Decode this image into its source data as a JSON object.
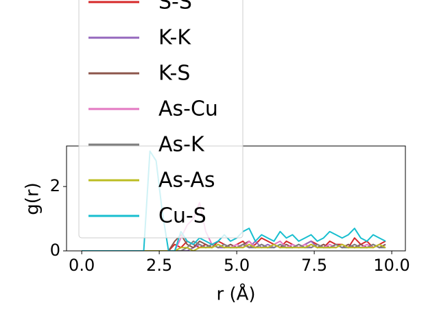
{
  "chart_data": {
    "type": "line",
    "xlabel": "r (Å)",
    "ylabel": "g(r)",
    "x": [
      0,
      0.2,
      0.4,
      0.6,
      0.8,
      1.0,
      1.2,
      1.4,
      1.6,
      1.8,
      2.0,
      2.2,
      2.4,
      2.6,
      2.8,
      3.0,
      3.2,
      3.4,
      3.6,
      3.8,
      4.0,
      4.2,
      4.4,
      4.6,
      4.8,
      5.0,
      5.2,
      5.4,
      5.6,
      5.8,
      6.0,
      6.2,
      6.4,
      6.6,
      6.8,
      7.0,
      7.2,
      7.4,
      7.6,
      7.8,
      8.0,
      8.2,
      8.4,
      8.6,
      8.8,
      9.0,
      9.2,
      9.4,
      9.6,
      9.8
    ],
    "series": [
      {
        "name": "S-S",
        "color": "#d62728",
        "values": [
          0,
          0,
          0,
          0,
          0,
          0,
          0,
          0,
          0,
          0,
          0,
          0,
          0,
          0,
          0,
          0.2,
          0.1,
          0.3,
          0.2,
          0.1,
          0.2,
          0.1,
          0.3,
          0.2,
          0.1,
          0.2,
          0.3,
          0.1,
          0.2,
          0.4,
          0.3,
          0.2,
          0.1,
          0.3,
          0.2,
          0.1,
          0.2,
          0.3,
          0.2,
          0.1,
          0.3,
          0.2,
          0.2,
          0.1,
          0.4,
          0.2,
          0.3,
          0.1,
          0.2,
          0.3
        ]
      },
      {
        "name": "K-K",
        "color": "#9467bd",
        "values": [
          0,
          0,
          0,
          0,
          0,
          0,
          0,
          0,
          0,
          0,
          0,
          0,
          0,
          0,
          0,
          0,
          0,
          0,
          0.1,
          0.2,
          0.1,
          0.2,
          0.1,
          0.1,
          0.2,
          0.1,
          0.2,
          0.1,
          0.3,
          0.1,
          0.2,
          0.1,
          0.2,
          0.1,
          0.2,
          0.1,
          0.2,
          0.3,
          0.1,
          0.2,
          0.1,
          0.2,
          0.1,
          0.2,
          0.1,
          0.2,
          0.1,
          0.2,
          0.1,
          0.2
        ]
      },
      {
        "name": "K-S",
        "color": "#8c564b",
        "values": [
          0,
          0,
          0,
          0,
          0,
          0,
          0,
          0,
          0,
          0,
          0,
          0,
          0,
          0,
          0,
          0.3,
          0.5,
          0.2,
          0.1,
          0.3,
          0.2,
          0.1,
          0.2,
          0.1,
          0.2,
          0.1,
          0.2,
          0.3,
          0.1,
          0.2,
          0.1,
          0.2,
          0.1,
          0.2,
          0.1,
          0.2,
          0.1,
          0.2,
          0.1,
          0.2,
          0.1,
          0.2,
          0.1,
          0.2,
          0.1,
          0.2,
          0.1,
          0.2,
          0.1,
          0.2
        ]
      },
      {
        "name": "As-Cu",
        "color": "#e377c2",
        "values": [
          0,
          0,
          0,
          0,
          0,
          0,
          0,
          0,
          0,
          0,
          0,
          0,
          0,
          0,
          0,
          0,
          0.4,
          0.8,
          1.0,
          1.5,
          0.6,
          0.2,
          0.1,
          0.2,
          0.1,
          0.2,
          0.1,
          0.3,
          0.1,
          0.2,
          0.1,
          0.2,
          0.3,
          0.1,
          0.2,
          0.1,
          0.2,
          0.1,
          0.2,
          0.1,
          0.2,
          0.1,
          0.2,
          0.1,
          0.2,
          0.1,
          0.2,
          0.1,
          0.2,
          0.1
        ]
      },
      {
        "name": "As-K",
        "color": "#7f7f7f",
        "values": [
          0,
          0,
          0,
          0,
          0,
          0,
          0,
          0,
          0,
          0,
          0,
          0,
          0,
          0,
          0,
          0,
          0,
          0.1,
          0.3,
          0.2,
          0.1,
          0.2,
          0.1,
          0.2,
          0.1,
          0.1,
          0.2,
          0.1,
          0.1,
          0.2,
          0.1,
          0.1,
          0.2,
          0.1,
          0.1,
          0.2,
          0.1,
          0.1,
          0.2,
          0.1,
          0.1,
          0.2,
          0.1,
          0.1,
          0.2,
          0.1,
          0.1,
          0.2,
          0.1,
          0.1
        ]
      },
      {
        "name": "As-As",
        "color": "#bcbd22",
        "values": [
          0,
          0,
          0,
          0,
          0,
          0,
          0,
          0,
          0,
          0,
          0,
          0,
          0,
          0,
          0,
          0,
          0.1,
          0.1,
          0,
          0.1,
          0.1,
          0.1,
          0.2,
          0.1,
          0.1,
          0.1,
          0.1,
          0.2,
          0.1,
          0.1,
          0.1,
          0.2,
          0.1,
          0.1,
          0.1,
          0.1,
          0.1,
          0.2,
          0.1,
          0.1,
          0.1,
          0.1,
          0.2,
          0.1,
          0.1,
          0.1,
          0.1,
          0.1,
          0.2,
          0.1
        ]
      },
      {
        "name": "Cu-S",
        "color": "#17becf",
        "values": [
          0,
          0,
          0,
          0,
          0,
          0,
          0,
          0,
          0,
          0,
          0,
          3.1,
          2.8,
          1.2,
          0,
          0,
          0.6,
          0.3,
          0.2,
          0.4,
          0.3,
          0.2,
          0.3,
          0.5,
          0.3,
          0.4,
          0.6,
          0.7,
          0.3,
          0.5,
          0.4,
          0.3,
          0.6,
          0.4,
          0.5,
          0.3,
          0.4,
          0.5,
          0.3,
          0.4,
          0.6,
          0.5,
          0.4,
          0.5,
          0.7,
          0.4,
          0.3,
          0.5,
          0.4,
          0.3
        ]
      }
    ],
    "xlim": [
      -0.49,
      10.44
    ],
    "ylim": [
      0,
      3.26
    ],
    "xticks": [
      {
        "value": 0,
        "label": "0.0"
      },
      {
        "value": 2.5,
        "label": "2.5"
      },
      {
        "value": 5,
        "label": "5.0"
      },
      {
        "value": 7.5,
        "label": "7.5"
      },
      {
        "value": 10,
        "label": "10.0"
      }
    ],
    "yticks": [
      0,
      2
    ],
    "legend": "upper center"
  }
}
